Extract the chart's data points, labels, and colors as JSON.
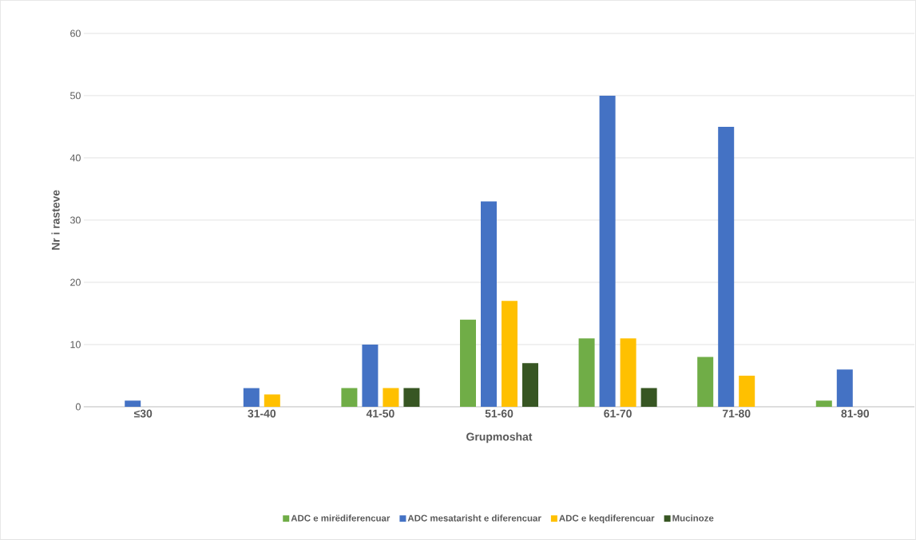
{
  "chart_data": {
    "type": "bar",
    "xlabel": "Grupmoshat",
    "ylabel": "Nr i rasteve",
    "categories": [
      "≤30",
      "31-40",
      "41-50",
      "51-60",
      "61-70",
      "71-80",
      "81-90"
    ],
    "series": [
      {
        "name": "ADC e mirëdiferencuar",
        "color": "#70ad47",
        "values": [
          0,
          0,
          3,
          14,
          11,
          8,
          1
        ]
      },
      {
        "name": "ADC mesatarisht e diferencuar",
        "color": "#4472c4",
        "values": [
          1,
          3,
          10,
          33,
          50,
          45,
          6
        ]
      },
      {
        "name": "ADC e keqdiferencuar",
        "color": "#ffc000",
        "values": [
          0,
          2,
          3,
          17,
          11,
          5,
          0
        ]
      },
      {
        "name": "Mucinoze",
        "color": "#375623",
        "values": [
          0,
          0,
          3,
          7,
          3,
          0,
          0
        ]
      }
    ],
    "ylim": [
      0,
      60
    ],
    "yticks": [
      0,
      10,
      20,
      30,
      40,
      50,
      60
    ],
    "grid": "y",
    "legend": "bottom"
  }
}
